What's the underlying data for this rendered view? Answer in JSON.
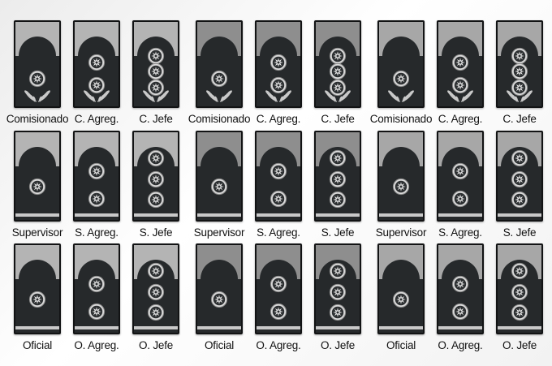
{
  "panel_colors": [
    "#b4b4b4",
    "#8e8e8e",
    "#a7a7a7"
  ],
  "board_color": "#26292b",
  "pip_icon": "eight-point-star-badge",
  "laurel_icon": "laurel-branch",
  "rows": [
    {
      "id": "comisionado",
      "laurel": true,
      "bottom_bar": false,
      "ranks": [
        {
          "label": "Comisionado",
          "pips": 1
        },
        {
          "label": "C. Agreg.",
          "pips": 2
        },
        {
          "label": "C. Jefe",
          "pips": 3
        }
      ]
    },
    {
      "id": "supervisor",
      "laurel": false,
      "bottom_bar": true,
      "ranks": [
        {
          "label": "Supervisor",
          "pips": 1
        },
        {
          "label": "S. Agreg.",
          "pips": 2
        },
        {
          "label": "S. Jefe",
          "pips": 3
        }
      ]
    },
    {
      "id": "oficial",
      "laurel": false,
      "bottom_bar": true,
      "ranks": [
        {
          "label": "Oficial",
          "pips": 1
        },
        {
          "label": "O. Agreg.",
          "pips": 2
        },
        {
          "label": "O. Jefe",
          "pips": 3
        }
      ]
    }
  ]
}
